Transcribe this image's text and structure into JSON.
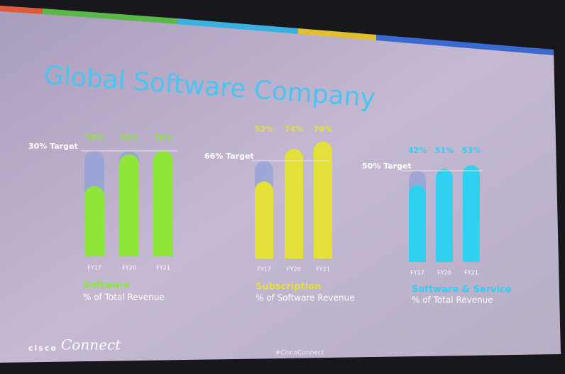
{
  "title": "Global Software Company",
  "footer": "#CiscoConnect",
  "logo": {
    "brand": "cisco",
    "product": "Connect"
  },
  "chart_data": [
    {
      "type": "bar",
      "title": "Software",
      "subtitle": "% of Total Revenue",
      "color": "#8ee63a",
      "categories": [
        "FY17",
        "FY20",
        "FY21"
      ],
      "values": [
        20,
        29,
        30
      ],
      "value_labels": [
        "20%",
        "29%",
        "30%"
      ],
      "target": {
        "value": 30,
        "label": "30% Target"
      }
    },
    {
      "type": "bar",
      "title": "Subscription",
      "subtitle": "% of Software Revenue",
      "color": "#e4e03a",
      "categories": [
        "FY17",
        "FY20",
        "FY21"
      ],
      "values": [
        52,
        74,
        79
      ],
      "value_labels": [
        "52%",
        "74%",
        "79%"
      ],
      "target": {
        "value": 66,
        "label": "66% Target"
      }
    },
    {
      "type": "bar",
      "title": "Software & Service",
      "subtitle": "% of Total Revenue",
      "color": "#2fd0f0",
      "categories": [
        "FY17",
        "FY20",
        "FY21"
      ],
      "values": [
        42,
        51,
        53
      ],
      "value_labels": [
        "42%",
        "51%",
        "53%"
      ],
      "target": {
        "value": 50,
        "label": "50% Target"
      }
    }
  ]
}
